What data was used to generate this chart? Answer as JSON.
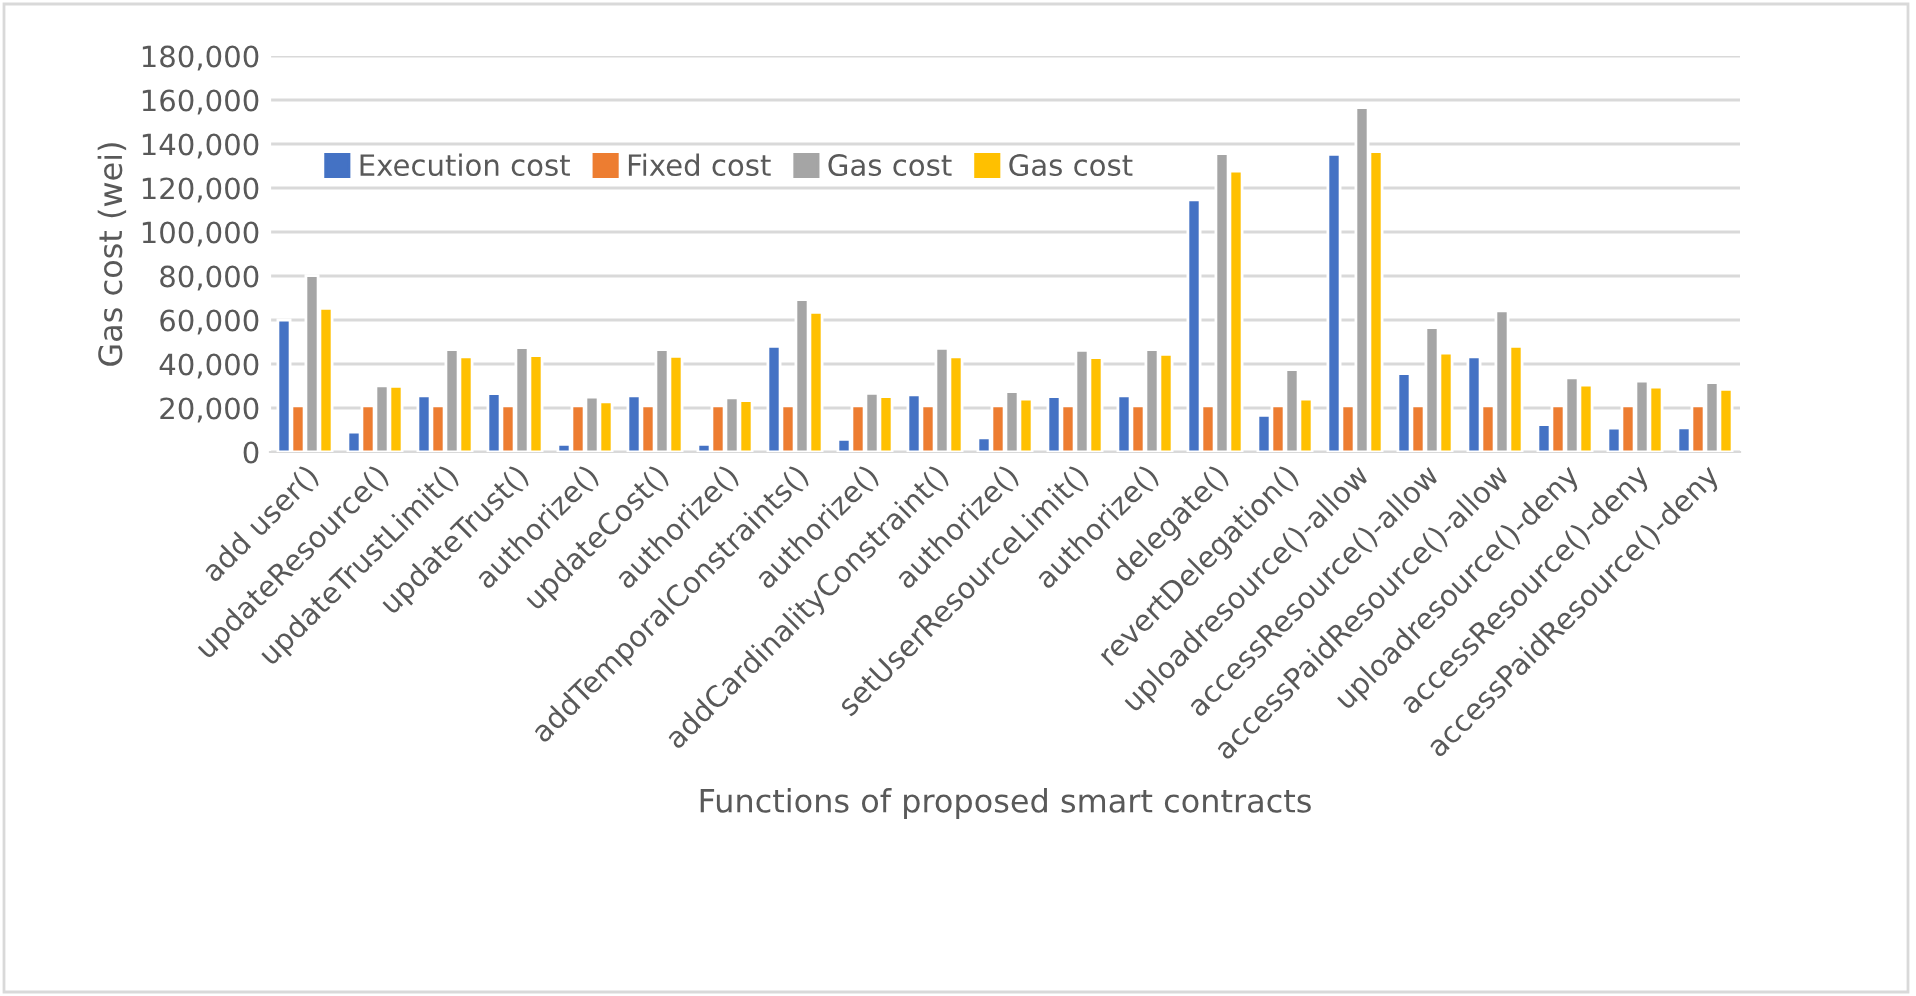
{
  "chart_data": {
    "type": "bar",
    "xlabel": "Functions of proposed smart contracts",
    "ylabel": "Gas cost (wei)",
    "categories": [
      "add user()",
      "updateResource()",
      "updateTrustLimit()",
      "updateTrust()",
      "authorize()",
      "updateCost()",
      "authorize()",
      "addTemporalConstraints()",
      "authorize()",
      "addCardinalityConstraint()",
      "authorize()",
      "setUserResourceLimit()",
      "authorize()",
      "delegate()",
      "revertDelegation()",
      "uploadresource()-allow",
      "accessResource()-allow",
      "accessPaidResource()-allow",
      "uploadresource()-deny",
      "accessResource()-deny",
      "accessPaidResource()-deny"
    ],
    "series": [
      {
        "name": "Execution cost",
        "color": "#4472c4",
        "values": [
          60000,
          9000,
          25500,
          26500,
          3500,
          25500,
          3500,
          48000,
          5800,
          26000,
          6400,
          25200,
          25500,
          114600,
          16700,
          135300,
          35600,
          43200,
          12500,
          10900,
          11000
        ]
      },
      {
        "name": "Fixed cost",
        "color": "#ed7d31",
        "values": [
          21000,
          21000,
          21000,
          21000,
          21000,
          21000,
          21000,
          21000,
          21000,
          21000,
          21000,
          21000,
          21000,
          21000,
          21000,
          21000,
          21000,
          21000,
          21000,
          21000,
          21000
        ]
      },
      {
        "name": "Gas cost",
        "color": "#a5a5a5",
        "values": [
          80200,
          30100,
          46500,
          47400,
          24900,
          46500,
          24600,
          69300,
          26700,
          47100,
          27400,
          46200,
          46500,
          135600,
          37400,
          156500,
          56500,
          64100,
          33700,
          32200,
          31500
        ]
      },
      {
        "name": "Gas cost",
        "color": "#ffc000",
        "values": [
          65300,
          29800,
          43200,
          43800,
          22800,
          43500,
          23400,
          63500,
          25200,
          43200,
          24000,
          42900,
          44400,
          127700,
          24000,
          136500,
          45000,
          48000,
          30400,
          29500,
          28500
        ]
      }
    ],
    "ylim": [
      0,
      180000
    ],
    "yticks": [
      {
        "value": 0,
        "label": "0"
      },
      {
        "value": 20000,
        "label": "20,000"
      },
      {
        "value": 40000,
        "label": "40,000"
      },
      {
        "value": 60000,
        "label": "60,000"
      },
      {
        "value": 80000,
        "label": "80,000"
      },
      {
        "value": 100000,
        "label": "100,000"
      },
      {
        "value": 120000,
        "label": "120,000"
      },
      {
        "value": 140000,
        "label": "140,000"
      },
      {
        "value": 160000,
        "label": "160,000"
      },
      {
        "value": 180000,
        "label": "180,000"
      }
    ],
    "grid": "y",
    "legend": "top"
  }
}
